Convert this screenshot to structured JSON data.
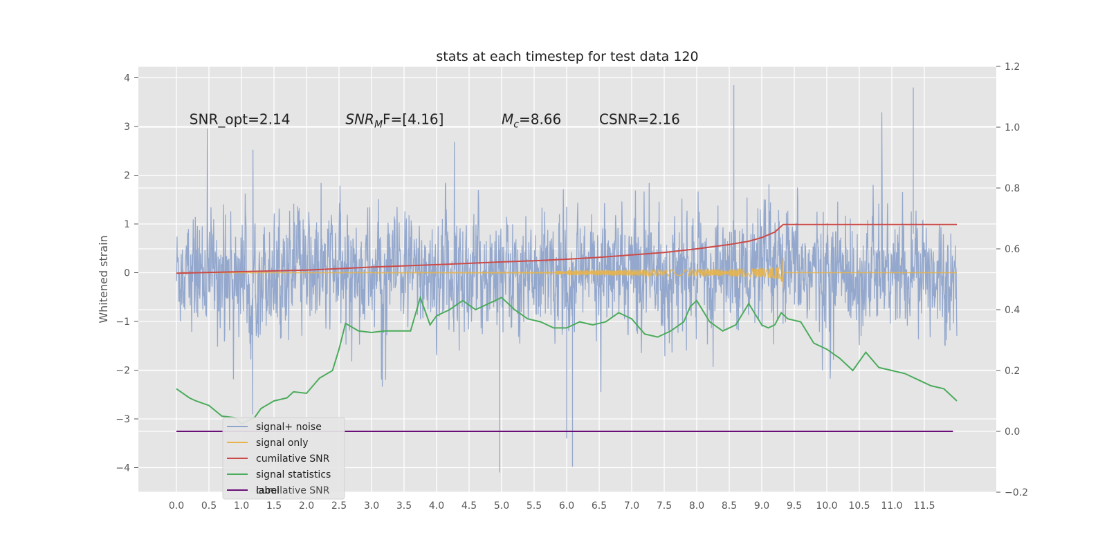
{
  "chart_data": {
    "type": "line",
    "title": "stats at each timestep for test data 120",
    "xlabel": "",
    "ylabel": "Whitened strain",
    "ylabel_right": "",
    "xlim": [
      -0.6,
      12.6
    ],
    "ylim": [
      -4.5,
      4.3
    ],
    "ylim_right": [
      -0.2,
      1.2
    ],
    "xticks": [
      "0.0",
      "0.5",
      "1.0",
      "1.5",
      "2.0",
      "2.5",
      "3.0",
      "3.5",
      "4.0",
      "4.5",
      "5.0",
      "5.5",
      "6.0",
      "6.5",
      "7.0",
      "7.5",
      "8.0",
      "8.5",
      "9.0",
      "9.5",
      "10.0",
      "10.5",
      "11.0",
      "11.5"
    ],
    "yticks_left": [
      "4",
      "3",
      "2",
      "1",
      "0",
      "−1",
      "−2",
      "−3",
      "−4"
    ],
    "yticks_right": [
      "1.2",
      "1.0",
      "0.8",
      "0.6",
      "0.4",
      "0.2",
      "0.0",
      "−0.2"
    ],
    "grid": true,
    "legend_position": "lower-left",
    "annotations": [
      {
        "text": "SNR_opt=2.14",
        "x": 0.2,
        "y": 3.05
      },
      {
        "text_main": "SNR",
        "text_sub": "M",
        "text_tail": "F=[4.16]",
        "x": 2.6,
        "y": 3.05
      },
      {
        "text_main": "M",
        "text_sub": "c",
        "text_tail": "=8.66",
        "x": 5.0,
        "y": 3.05
      },
      {
        "text": "CSNR=2.16",
        "x": 6.5,
        "y": 3.05
      }
    ],
    "series": [
      {
        "name": "signal+ noise",
        "axis": "left",
        "color": "#8fa4cb",
        "kind": "noise",
        "x_range": [
          0.0,
          12.0
        ],
        "typical_range": [
          -1.8,
          1.8
        ],
        "extremes_min": -4.1,
        "extremes_max": 3.85
      },
      {
        "name": "signal only",
        "axis": "left",
        "color": "#e8b44a",
        "kind": "chirp",
        "x_range": [
          0.0,
          9.33
        ],
        "max_amplitude": 0.3,
        "merger_x": 9.33
      },
      {
        "name": "cumilative SNR",
        "axis": "right",
        "color": "#cc4a48",
        "x": [
          0.0,
          1.0,
          2.0,
          3.0,
          4.0,
          5.0,
          5.5,
          6.0,
          6.5,
          7.0,
          7.5,
          8.0,
          8.5,
          8.8,
          9.0,
          9.2,
          9.33,
          10.0,
          11.0,
          12.0
        ],
        "values": [
          0.52,
          0.525,
          0.53,
          0.54,
          0.548,
          0.557,
          0.561,
          0.566,
          0.572,
          0.58,
          0.588,
          0.6,
          0.614,
          0.625,
          0.637,
          0.655,
          0.68,
          0.68,
          0.68,
          0.68
        ]
      },
      {
        "name": "signal statistics",
        "axis": "right",
        "color": "#4aab5b",
        "x": [
          0.0,
          0.2,
          0.3,
          0.5,
          0.7,
          0.9,
          1.0,
          1.1,
          1.2,
          1.3,
          1.5,
          1.7,
          1.8,
          2.0,
          2.2,
          2.4,
          2.5,
          2.6,
          2.8,
          3.0,
          3.2,
          3.4,
          3.6,
          3.75,
          3.9,
          4.0,
          4.2,
          4.4,
          4.6,
          4.8,
          5.0,
          5.2,
          5.4,
          5.6,
          5.8,
          6.0,
          6.2,
          6.4,
          6.6,
          6.8,
          7.0,
          7.2,
          7.4,
          7.6,
          7.8,
          7.9,
          8.0,
          8.2,
          8.4,
          8.6,
          8.8,
          9.0,
          9.1,
          9.2,
          9.25,
          9.3,
          9.4,
          9.6,
          9.8,
          10.0,
          10.2,
          10.4,
          10.6,
          10.8,
          11.0,
          11.2,
          11.4,
          11.6,
          11.8,
          12.0
        ],
        "values": [
          0.14,
          0.11,
          0.1,
          0.085,
          0.05,
          0.045,
          0.025,
          0.035,
          0.045,
          0.075,
          0.1,
          0.11,
          0.13,
          0.125,
          0.175,
          0.2,
          0.27,
          0.355,
          0.33,
          0.325,
          0.33,
          0.33,
          0.33,
          0.44,
          0.35,
          0.38,
          0.4,
          0.43,
          0.4,
          0.42,
          0.44,
          0.4,
          0.37,
          0.36,
          0.34,
          0.34,
          0.36,
          0.35,
          0.36,
          0.39,
          0.37,
          0.32,
          0.31,
          0.33,
          0.36,
          0.41,
          0.43,
          0.36,
          0.33,
          0.35,
          0.42,
          0.35,
          0.34,
          0.35,
          0.37,
          0.39,
          0.37,
          0.36,
          0.29,
          0.27,
          0.24,
          0.2,
          0.26,
          0.21,
          0.2,
          0.19,
          0.17,
          0.15,
          0.14,
          0.1
        ],
        "x_end": 11.94
      },
      {
        "name": "label",
        "axis": "right",
        "color": "#6a0e78",
        "x": [
          0.0,
          11.94
        ],
        "values": [
          0.0,
          0.0
        ]
      }
    ],
    "ghost_legend_text": "cumilative SNR"
  }
}
